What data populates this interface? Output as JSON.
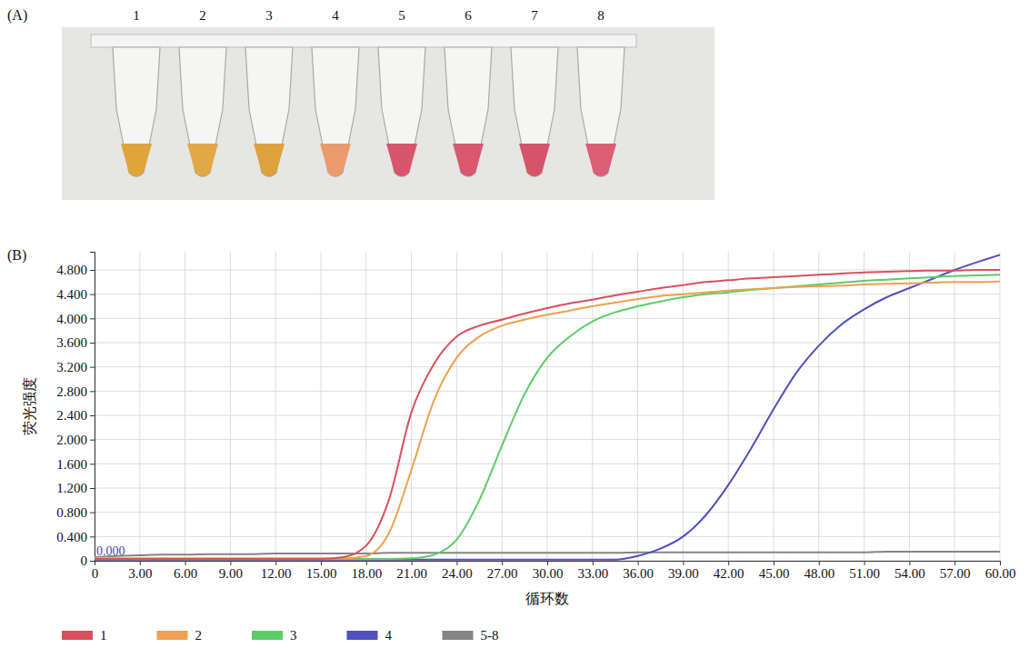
{
  "panel_a": {
    "label": "(A)",
    "tubes": [
      {
        "label": "1",
        "color": "#dfa43a"
      },
      {
        "label": "2",
        "color": "#e2a846"
      },
      {
        "label": "3",
        "color": "#dda23c"
      },
      {
        "label": "4",
        "color": "#ea9a6c"
      },
      {
        "label": "5",
        "color": "#d8566c"
      },
      {
        "label": "6",
        "color": "#d9586e"
      },
      {
        "label": "7",
        "color": "#d6546a"
      },
      {
        "label": "8",
        "color": "#dc5e74"
      }
    ]
  },
  "chart_data": {
    "type": "line",
    "panel_label": "(B)",
    "x_label": "循环数",
    "y_label": "荧光强度",
    "xlim": [
      0,
      60
    ],
    "ylim": [
      0,
      5.1
    ],
    "xticks": [
      0,
      {
        "value": 3,
        "label": "3.00"
      },
      {
        "value": 6,
        "label": "6.00"
      },
      {
        "value": 9,
        "label": "9.00"
      },
      {
        "value": 12,
        "label": "12.00"
      },
      {
        "value": 15,
        "label": "15.00"
      },
      {
        "value": 18,
        "label": "18.00"
      },
      {
        "value": 21,
        "label": "21.00"
      },
      {
        "value": 24,
        "label": "24.00"
      },
      {
        "value": 27,
        "label": "27.00"
      },
      {
        "value": 30,
        "label": "30.00"
      },
      {
        "value": 33,
        "label": "33.00"
      },
      {
        "value": 36,
        "label": "36.00"
      },
      {
        "value": 39,
        "label": "39.00"
      },
      {
        "value": 42,
        "label": "42.00"
      },
      {
        "value": 45,
        "label": "45.00"
      },
      {
        "value": 48,
        "label": "48.00"
      },
      {
        "value": 51,
        "label": "51.00"
      },
      {
        "value": 54,
        "label": "54.00"
      },
      {
        "value": 57,
        "label": "57.00"
      },
      {
        "value": 60,
        "label": "60.00"
      }
    ],
    "yticks": [
      0,
      {
        "value": 0.4,
        "label": "0.400"
      },
      {
        "value": 0.8,
        "label": "0.800"
      },
      {
        "value": 1.2,
        "label": "1.200"
      },
      {
        "value": 1.6,
        "label": "1.600"
      },
      {
        "value": 2.0,
        "label": "2.000"
      },
      {
        "value": 2.4,
        "label": "2.400"
      },
      {
        "value": 2.8,
        "label": "2.800"
      },
      {
        "value": 3.2,
        "label": "3.200"
      },
      {
        "value": 3.6,
        "label": "3.600"
      },
      {
        "value": 4.0,
        "label": "4.000"
      },
      {
        "value": 4.4,
        "label": "4.400"
      },
      {
        "value": 4.8,
        "label": "4.800"
      }
    ],
    "grid": true,
    "legend": "bottom",
    "annotations": [
      {
        "text": "0.000",
        "x": 0,
        "y": 0.05,
        "color": "#4b4bb0"
      }
    ],
    "x": [
      0,
      1.5,
      3,
      4.5,
      6,
      7.5,
      9,
      10.5,
      12,
      13.5,
      15,
      16.5,
      18,
      19.5,
      21,
      22.5,
      24,
      25.5,
      27,
      28.5,
      30,
      31.5,
      33,
      34.5,
      36,
      37.5,
      39,
      40.5,
      42,
      43.5,
      45,
      46.5,
      48,
      49.5,
      51,
      52.5,
      54,
      55.5,
      57,
      58.5,
      60
    ],
    "series": [
      {
        "name": "1",
        "color": "#d9505e",
        "values": [
          0.03,
          0.03,
          0.03,
          0.03,
          0.03,
          0.03,
          0.03,
          0.03,
          0.03,
          0.03,
          0.03,
          0.06,
          0.25,
          1.0,
          2.45,
          3.25,
          3.7,
          3.88,
          3.98,
          4.08,
          4.17,
          4.25,
          4.31,
          4.38,
          4.44,
          4.5,
          4.55,
          4.6,
          4.63,
          4.66,
          4.68,
          4.7,
          4.72,
          4.74,
          4.76,
          4.77,
          4.78,
          4.79,
          4.79,
          4.8,
          4.8
        ]
      },
      {
        "name": "2",
        "color": "#f0a04e",
        "values": [
          0.04,
          0.04,
          0.04,
          0.04,
          0.04,
          0.04,
          0.04,
          0.04,
          0.04,
          0.04,
          0.04,
          0.04,
          0.08,
          0.45,
          1.5,
          2.65,
          3.35,
          3.7,
          3.88,
          3.98,
          4.06,
          4.13,
          4.2,
          4.26,
          4.32,
          4.37,
          4.4,
          4.43,
          4.46,
          4.48,
          4.5,
          4.52,
          4.53,
          4.54,
          4.56,
          4.57,
          4.58,
          4.59,
          4.6,
          4.6,
          4.61
        ]
      },
      {
        "name": "3",
        "color": "#5ccc68",
        "values": [
          0.03,
          0.03,
          0.03,
          0.03,
          0.03,
          0.03,
          0.03,
          0.03,
          0.03,
          0.03,
          0.03,
          0.03,
          0.03,
          0.03,
          0.04,
          0.1,
          0.35,
          1.0,
          1.9,
          2.75,
          3.35,
          3.7,
          3.95,
          4.1,
          4.2,
          4.28,
          4.35,
          4.4,
          4.43,
          4.47,
          4.5,
          4.53,
          4.56,
          4.59,
          4.62,
          4.64,
          4.66,
          4.68,
          4.7,
          4.71,
          4.72
        ]
      },
      {
        "name": "4",
        "color": "#5050bf",
        "values": [
          0.02,
          0.02,
          0.02,
          0.02,
          0.02,
          0.02,
          0.02,
          0.02,
          0.02,
          0.02,
          0.02,
          0.02,
          0.02,
          0.02,
          0.02,
          0.02,
          0.02,
          0.02,
          0.02,
          0.02,
          0.02,
          0.02,
          0.02,
          0.02,
          0.08,
          0.2,
          0.4,
          0.75,
          1.25,
          1.85,
          2.5,
          3.1,
          3.55,
          3.9,
          4.15,
          4.35,
          4.5,
          4.65,
          4.8,
          4.93,
          5.05
        ]
      },
      {
        "name": "5-8",
        "color": "#858585",
        "values": [
          0.06,
          0.08,
          0.09,
          0.1,
          0.1,
          0.11,
          0.11,
          0.11,
          0.12,
          0.12,
          0.12,
          0.12,
          0.12,
          0.13,
          0.13,
          0.13,
          0.13,
          0.13,
          0.13,
          0.13,
          0.13,
          0.13,
          0.13,
          0.13,
          0.14,
          0.14,
          0.14,
          0.14,
          0.14,
          0.14,
          0.14,
          0.14,
          0.14,
          0.14,
          0.14,
          0.15,
          0.15,
          0.15,
          0.15,
          0.15,
          0.15
        ]
      }
    ]
  }
}
